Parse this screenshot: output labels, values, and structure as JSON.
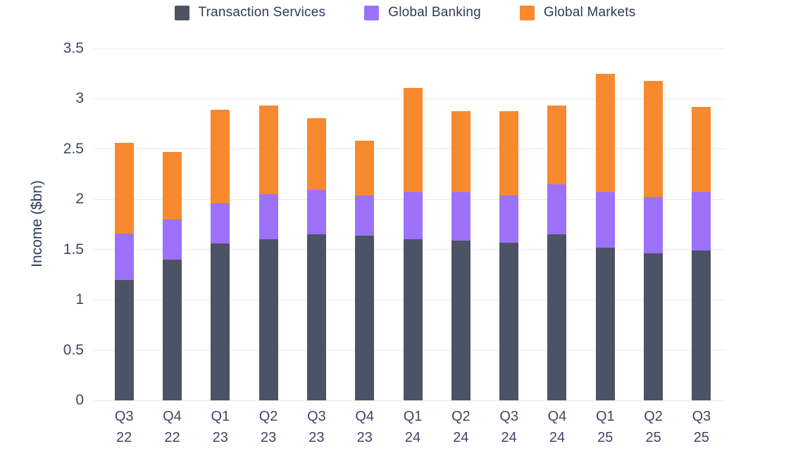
{
  "chart_data": {
    "type": "bar",
    "stacked": true,
    "title": "",
    "xlabel": "",
    "ylabel": "Income ($bn)",
    "ylim": [
      0,
      3.5
    ],
    "ytick_step": 0.5,
    "y_ticks": [
      "0",
      "0.5",
      "1",
      "1.5",
      "2",
      "2.5",
      "3",
      "3.5"
    ],
    "grid": true,
    "legend_position": "top",
    "background_color": "#ffffff",
    "gridline_color": "#ebebef",
    "axis_text_color": "#3c4764",
    "categories": [
      {
        "quarter": "Q3",
        "year": "22"
      },
      {
        "quarter": "Q4",
        "year": "22"
      },
      {
        "quarter": "Q1",
        "year": "23"
      },
      {
        "quarter": "Q2",
        "year": "23"
      },
      {
        "quarter": "Q3",
        "year": "23"
      },
      {
        "quarter": "Q4",
        "year": "23"
      },
      {
        "quarter": "Q1",
        "year": "24"
      },
      {
        "quarter": "Q2",
        "year": "24"
      },
      {
        "quarter": "Q3",
        "year": "24"
      },
      {
        "quarter": "Q4",
        "year": "24"
      },
      {
        "quarter": "Q1",
        "year": "25"
      },
      {
        "quarter": "Q2",
        "year": "25"
      },
      {
        "quarter": "Q3",
        "year": "25"
      }
    ],
    "series": [
      {
        "name": "Transaction Services",
        "color": "#4d5365",
        "values": [
          1.2,
          1.4,
          1.56,
          1.6,
          1.65,
          1.64,
          1.6,
          1.59,
          1.57,
          1.65,
          1.52,
          1.46,
          1.49
        ]
      },
      {
        "name": "Global Banking",
        "color": "#9c72fa",
        "values": [
          0.46,
          0.4,
          0.4,
          0.45,
          0.44,
          0.4,
          0.47,
          0.48,
          0.47,
          0.5,
          0.55,
          0.56,
          0.58
        ]
      },
      {
        "name": "Global Markets",
        "color": "#f8892e",
        "values": [
          0.9,
          0.67,
          0.93,
          0.88,
          0.72,
          0.54,
          1.04,
          0.81,
          0.84,
          0.78,
          1.18,
          1.16,
          0.85
        ]
      }
    ],
    "stack_totals": [
      2.56,
      2.47,
      2.89,
      2.93,
      2.81,
      2.58,
      3.11,
      2.88,
      2.88,
      2.93,
      3.25,
      3.18,
      2.92
    ]
  }
}
